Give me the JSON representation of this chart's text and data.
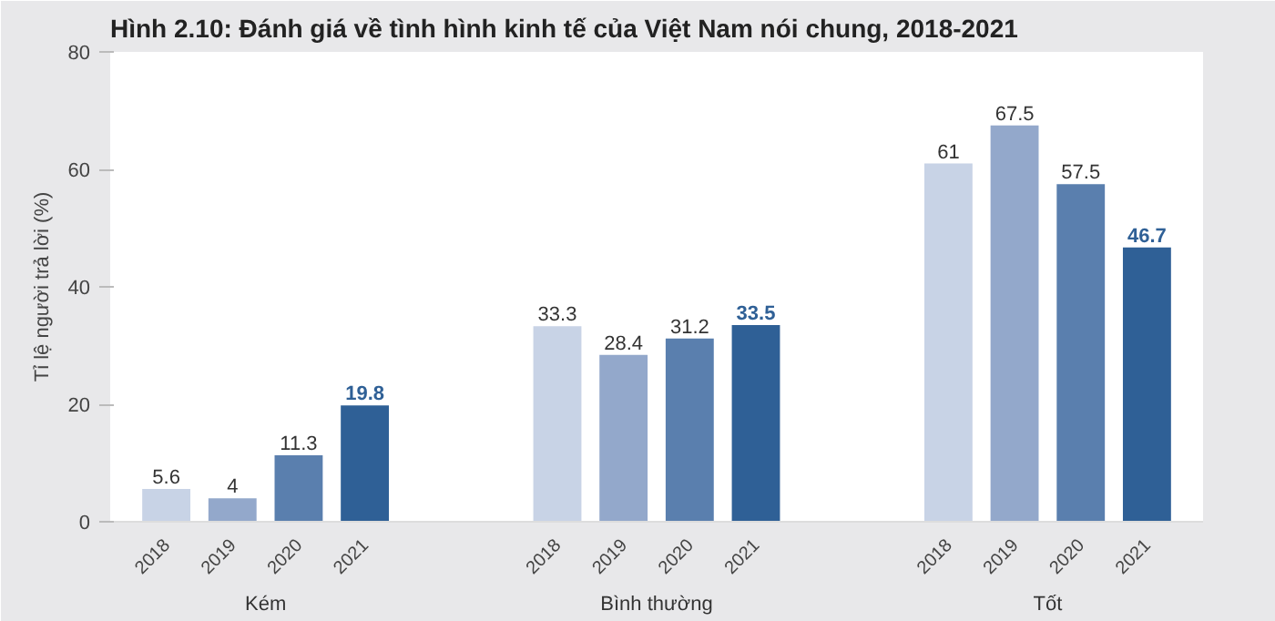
{
  "chart_data": {
    "type": "bar",
    "title": "Hình 2.10: Đánh giá về tình hình kinh tế của Việt Nam nói chung, 2018-2021",
    "ylabel": "Tỉ lệ người trả lời (%)",
    "categories": [
      "Kém",
      "Bình thường",
      "Tốt"
    ],
    "series": [
      {
        "name": "2018",
        "color": "#c8d3e6",
        "values": [
          5.6,
          33.3,
          61
        ]
      },
      {
        "name": "2019",
        "color": "#93a8cb",
        "values": [
          4,
          28.4,
          67.5
        ]
      },
      {
        "name": "2020",
        "color": "#5a7fae",
        "values": [
          11.3,
          31.2,
          57.5
        ]
      },
      {
        "name": "2021",
        "color": "#2f6096",
        "values": [
          19.8,
          33.5,
          46.7
        ]
      }
    ],
    "ylim": [
      0,
      80
    ],
    "yticks": [
      0,
      20,
      40,
      60,
      80
    ],
    "grid": false,
    "data_labels": true
  }
}
